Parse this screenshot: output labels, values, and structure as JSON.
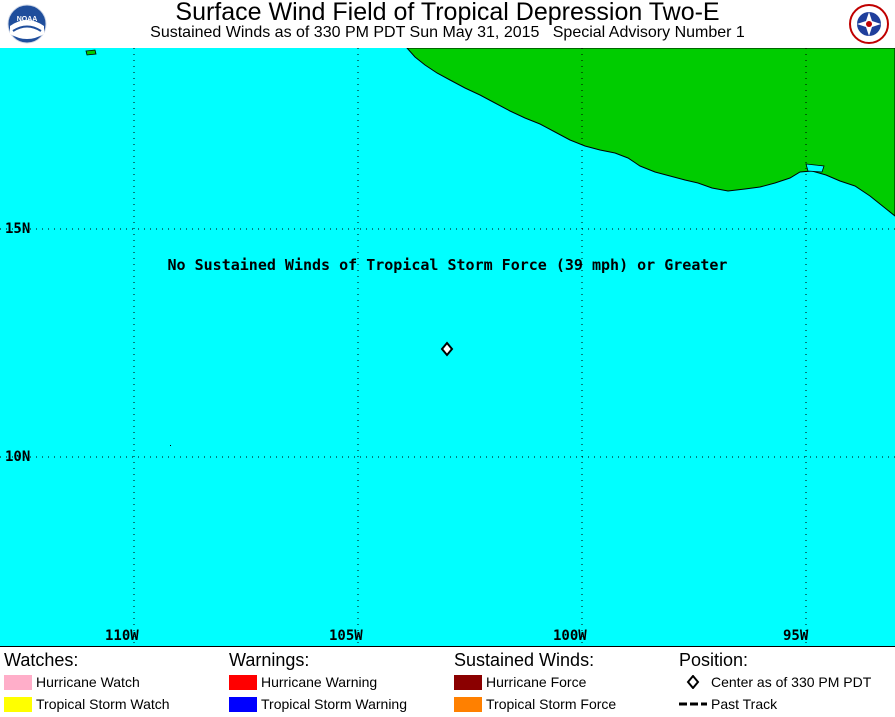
{
  "header": {
    "title": "Surface Wind Field of Tropical Depression Two-E",
    "subtitle": "Sustained Winds as of 330 PM PDT Sun May 31, 2015   Special Advisory Number 1",
    "logo_left": "NOAA",
    "logo_right": "NATIONAL WEATHER SERVICE"
  },
  "map": {
    "notice": "No Sustained Winds of Tropical Storm Force (39 mph) or Greater",
    "lat_labels": [
      "15N",
      "10N"
    ],
    "lon_labels": [
      "110W",
      "105W",
      "100W",
      "95W"
    ],
    "ocean_color": "#00ffff",
    "land_color": "#00cc00",
    "center_position": {
      "lat": 12.6,
      "lon": -103.0
    }
  },
  "legend": {
    "watches": {
      "heading": "Watches:",
      "items": [
        {
          "label": "Hurricane Watch",
          "color": "#ffaec9"
        },
        {
          "label": "Tropical Storm Watch",
          "color": "#ffff00"
        }
      ]
    },
    "warnings": {
      "heading": "Warnings:",
      "items": [
        {
          "label": "Hurricane Warning",
          "color": "#ff0000"
        },
        {
          "label": "Tropical Storm Warning",
          "color": "#0000ff"
        }
      ]
    },
    "winds": {
      "heading": "Sustained Winds:",
      "items": [
        {
          "label": "Hurricane Force",
          "color": "#8b0000"
        },
        {
          "label": "Tropical Storm Force",
          "color": "#ff8000"
        }
      ]
    },
    "position": {
      "heading": "Position:",
      "items": [
        {
          "label": "Center as of 330 PM PDT",
          "icon": "diamond-icon"
        },
        {
          "label": "Past Track",
          "icon": "dashed-line-icon"
        }
      ]
    }
  }
}
